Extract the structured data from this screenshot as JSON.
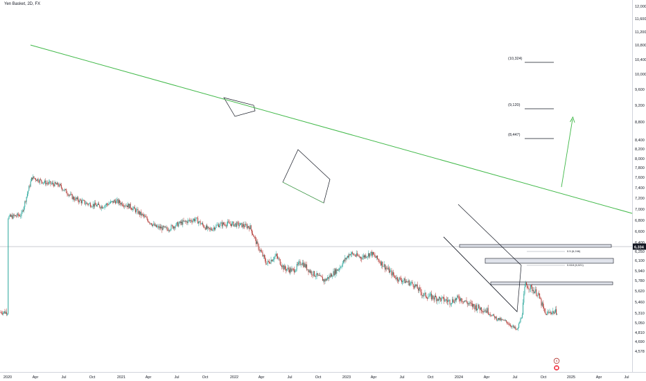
{
  "chart_title": "Yen Basket, 2D, FX",
  "colors": {
    "up": "#26a69a",
    "down": "#b2332f",
    "trendline": "#3fb847",
    "pattern": "#131722",
    "tag_bg": "#131722"
  },
  "chart_data": {
    "type": "candlestick",
    "title": "Yen Basket, 2D, FX",
    "y_ticks": [
      "12,000",
      "11,600",
      "11,200",
      "10,800",
      "10,400",
      "10,000",
      "9,600",
      "9,200",
      "8,800",
      "8,400",
      "8,200",
      "8,000",
      "7,800",
      "7,600",
      "7,400",
      "7,200",
      "7,000",
      "6,800",
      "6,600",
      "6,400",
      "6,250",
      "6,100",
      "5,940",
      "5,780",
      "5,620",
      "5,460",
      "5,310",
      "5,050",
      "4,810",
      "4,690",
      "4,578"
    ],
    "x_ticks": [
      "2020",
      "Apr",
      "Jul",
      "Oct",
      "2021",
      "Apr",
      "Jul",
      "Oct",
      "2022",
      "Apr",
      "Jul",
      "Oct",
      "2023",
      "Apr",
      "Jul",
      "Oct",
      "2024",
      "Apr",
      "Jul",
      "Oct",
      "2025",
      "Apr",
      "Jul"
    ],
    "current_price": "6,334",
    "price_path": [
      [
        "2020-01-01",
        6.85
      ],
      [
        "2020-02-15",
        6.9
      ],
      [
        "2020-03-20",
        7.6
      ],
      [
        "2020-05-01",
        7.5
      ],
      [
        "2020-06-15",
        7.45
      ],
      [
        "2020-08-01",
        7.2
      ],
      [
        "2020-09-15",
        7.1
      ],
      [
        "2020-11-01",
        7.05
      ],
      [
        "2020-12-15",
        7.15
      ],
      [
        "2021-02-01",
        7.05
      ],
      [
        "2021-03-15",
        6.88
      ],
      [
        "2021-04-25",
        6.68
      ],
      [
        "2021-06-01",
        6.64
      ],
      [
        "2021-07-15",
        6.75
      ],
      [
        "2021-09-01",
        6.82
      ],
      [
        "2021-10-15",
        6.62
      ],
      [
        "2021-11-15",
        6.72
      ],
      [
        "2021-12-15",
        6.74
      ],
      [
        "2022-01-20",
        6.72
      ],
      [
        "2022-02-25",
        6.68
      ],
      [
        "2022-03-20",
        6.36
      ],
      [
        "2022-04-20",
        6.05
      ],
      [
        "2022-05-20",
        6.18
      ],
      [
        "2022-06-15",
        5.98
      ],
      [
        "2022-07-15",
        5.94
      ],
      [
        "2022-08-10",
        6.08
      ],
      [
        "2022-09-10",
        5.92
      ],
      [
        "2022-10-25",
        5.78
      ],
      [
        "2022-12-10",
        5.98
      ],
      [
        "2023-01-15",
        6.22
      ],
      [
        "2023-02-20",
        6.15
      ],
      [
        "2023-03-25",
        6.22
      ],
      [
        "2023-05-01",
        6.04
      ],
      [
        "2023-06-15",
        5.82
      ],
      [
        "2023-08-10",
        5.72
      ],
      [
        "2023-09-10",
        5.56
      ],
      [
        "2023-10-20",
        5.52
      ],
      [
        "2023-12-05",
        5.47
      ],
      [
        "2024-01-05",
        5.52
      ],
      [
        "2024-02-10",
        5.42
      ],
      [
        "2024-03-10",
        5.38
      ],
      [
        "2024-04-05",
        5.34
      ],
      [
        "2024-05-05",
        5.16
      ],
      [
        "2024-06-05",
        5.08
      ],
      [
        "2024-07-10",
        4.86
      ],
      [
        "2024-07-25",
        5.25
      ],
      [
        "2024-08-05",
        5.72
      ],
      [
        "2024-08-25",
        5.66
      ],
      [
        "2024-09-15",
        5.58
      ],
      [
        "2024-10-10",
        5.28
      ],
      [
        "2024-10-25",
        5.32
      ]
    ],
    "targets": [
      {
        "label": "(10,324)",
        "value": 10.324
      },
      {
        "label": "(9,120)",
        "value": 9.12
      },
      {
        "label": "(8,447)",
        "value": 8.447
      }
    ],
    "fib_levels": [
      {
        "label": "0.5 (6,246)",
        "value": 6.246
      },
      {
        "label": "0.618 (6,021)",
        "value": 6.021
      }
    ]
  }
}
